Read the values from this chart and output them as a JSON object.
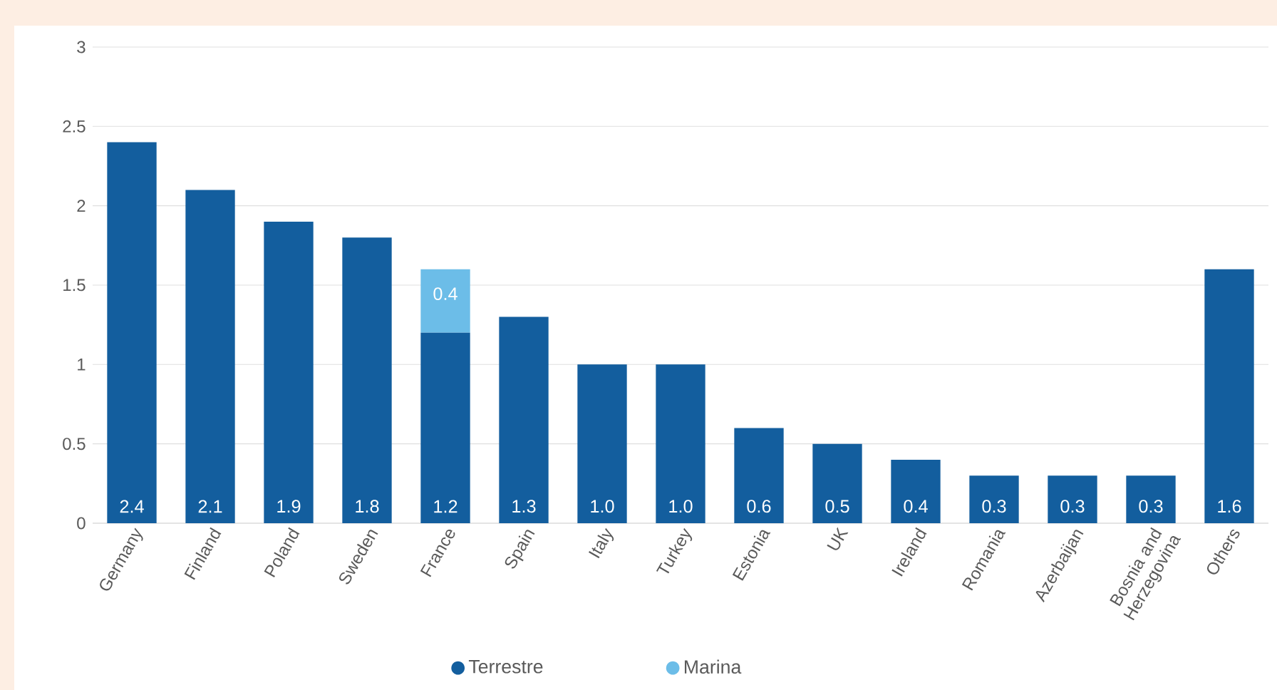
{
  "chart_data": {
    "type": "bar",
    "stacked": true,
    "categories": [
      "Germany",
      "Finland",
      "Poland",
      "Sweden",
      "France",
      "Spain",
      "Italy",
      "Turkey",
      "Estonia",
      "UK",
      "Ireland",
      "Romania",
      "Azerbaijan",
      "Bosnia and Herzegovina",
      "Others"
    ],
    "series": [
      {
        "name": "Terrestre",
        "color": "#135e9e",
        "values": [
          2.4,
          2.1,
          1.9,
          1.8,
          1.2,
          1.3,
          1.0,
          1.0,
          0.6,
          0.5,
          0.4,
          0.3,
          0.3,
          0.3,
          1.6
        ],
        "value_labels": [
          "2.4",
          "2.1",
          "1.9",
          "1.8",
          "1.2",
          "1.3",
          "1.0",
          "1.0",
          "0.6",
          "0.5",
          "0.4",
          "0.3",
          "0.3",
          "0.3",
          "1.6"
        ]
      },
      {
        "name": "Marina",
        "color": "#6cbde8",
        "values": [
          null,
          null,
          null,
          null,
          0.4,
          null,
          null,
          null,
          null,
          null,
          null,
          null,
          null,
          null,
          null
        ],
        "value_labels": [
          null,
          null,
          null,
          null,
          "0.4",
          null,
          null,
          null,
          null,
          null,
          null,
          null,
          null,
          null,
          null
        ]
      }
    ],
    "ylim": [
      0,
      3
    ],
    "yticks": [
      0,
      0.5,
      1,
      1.5,
      2,
      2.5,
      3
    ],
    "grid": "y",
    "legend": "bottom",
    "marker": "circle"
  }
}
